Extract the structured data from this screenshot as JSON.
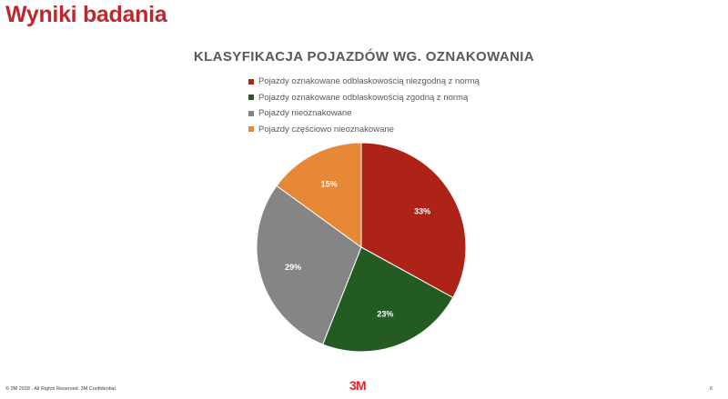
{
  "slide": {
    "title": "Wyniki badania",
    "footer": "© 3M   2018   . All Rights Reserved.  3M Confidential.",
    "logo": "3M",
    "page_number": "6"
  },
  "chart_data": {
    "type": "pie",
    "title": "KLASYFIKACJA POJAZDÓW WG. OZNAKOWANIA",
    "legend_position": "top",
    "slices": [
      {
        "name": "Pojazdy oznakowane odblaskowością niezgodną z normą",
        "value": 33,
        "label": "33%",
        "color": "#ae2318"
      },
      {
        "name": "Pojazdy oznakowane odblaskowością zgodną z normą",
        "value": 23,
        "label": "23%",
        "color": "#235b23"
      },
      {
        "name": "Pojazdy nieoznakowane",
        "value": 29,
        "label": "29%",
        "color": "#858585"
      },
      {
        "name": "Pojazdy częściowo nieoznakowane",
        "value": 15,
        "label": "15%",
        "color": "#e68835"
      }
    ]
  }
}
